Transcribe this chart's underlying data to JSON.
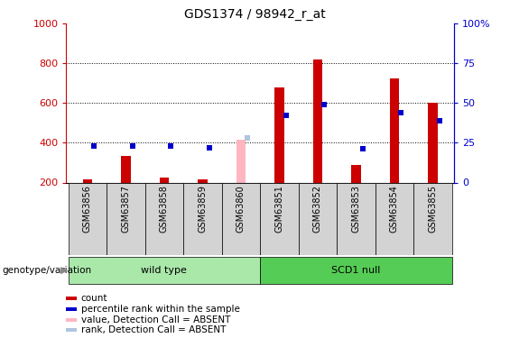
{
  "title": "GDS1374 / 98942_r_at",
  "samples": [
    "GSM63856",
    "GSM63857",
    "GSM63858",
    "GSM63859",
    "GSM63860",
    "GSM63851",
    "GSM63852",
    "GSM63853",
    "GSM63854",
    "GSM63855"
  ],
  "count_values": [
    215,
    335,
    225,
    215,
    null,
    680,
    820,
    290,
    725,
    600
  ],
  "count_absent": [
    null,
    null,
    null,
    null,
    415,
    null,
    null,
    null,
    null,
    null
  ],
  "percentile_raw": [
    23,
    23,
    23,
    22,
    null,
    42,
    49,
    21,
    44,
    39
  ],
  "percentile_absent_raw": [
    null,
    null,
    null,
    null,
    28,
    null,
    null,
    null,
    null,
    null
  ],
  "ylim_left": [
    200,
    1000
  ],
  "ylim_right": [
    0,
    100
  ],
  "yticks_left": [
    200,
    400,
    600,
    800,
    1000
  ],
  "yticks_right": [
    0,
    25,
    50,
    75,
    100
  ],
  "bar_color_count": "#cc0000",
  "bar_color_percentile": "#0000cc",
  "bar_color_count_absent": "#ffb6c1",
  "bar_color_percentile_absent": "#b0c4de",
  "legend_items": [
    {
      "color": "#cc0000",
      "label": "count"
    },
    {
      "color": "#0000cc",
      "label": "percentile rank within the sample"
    },
    {
      "color": "#ffb6c1",
      "label": "value, Detection Call = ABSENT"
    },
    {
      "color": "#b0c4de",
      "label": "rank, Detection Call = ABSENT"
    }
  ],
  "xlabel_genotype": "genotype/variation",
  "axis_color_left": "#cc0000",
  "axis_color_right": "#0000cc",
  "wild_type_color": "#aae8aa",
  "scd1_null_color": "#55cc55",
  "label_bg_color": "#d3d3d3"
}
